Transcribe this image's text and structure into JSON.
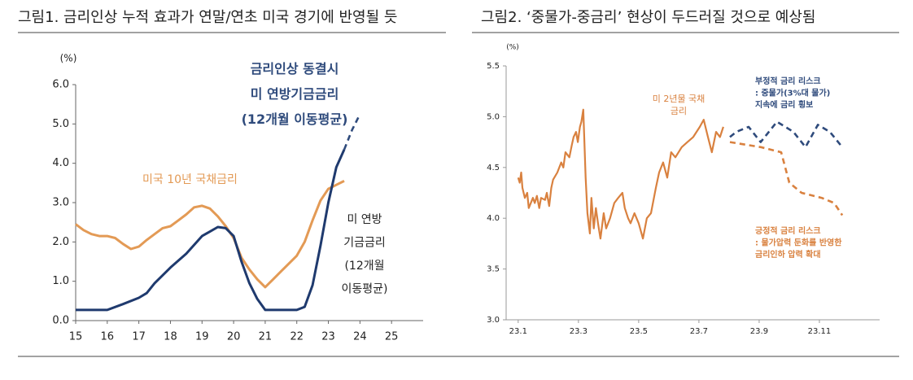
{
  "chart_data": [
    {
      "type": "line",
      "title": "그림1.   금리인상 누적 효과가 연말/연초 미국 경기에 반영될 듯",
      "y_label": "(%)",
      "xlim": [
        15,
        26
      ],
      "xticks": [
        15,
        16,
        17,
        18,
        19,
        20,
        21,
        22,
        23,
        24,
        25
      ],
      "ylim": [
        0,
        6
      ],
      "yticks": [
        {
          "value": 0,
          "label": "0.0"
        },
        {
          "value": 1,
          "label": "1.0"
        },
        {
          "value": 2,
          "label": "2.0"
        },
        {
          "value": 3,
          "label": "3.0"
        },
        {
          "value": 4,
          "label": "4.0"
        },
        {
          "value": 5,
          "label": "5.0"
        },
        {
          "value": 6,
          "label": "6.0"
        }
      ],
      "series": [
        {
          "name": "미국 10년 국채금리",
          "color": "#e39a55",
          "x": [
            15,
            15.25,
            15.5,
            15.75,
            16,
            16.25,
            16.5,
            16.75,
            17,
            17.25,
            17.5,
            17.75,
            18,
            18.25,
            18.5,
            18.75,
            19,
            19.25,
            19.5,
            19.75,
            20,
            20.25,
            20.5,
            20.75,
            21,
            21.25,
            21.5,
            21.75,
            22,
            22.25,
            22.5,
            22.75,
            23,
            23.25,
            23.5
          ],
          "values": [
            2.45,
            2.3,
            2.2,
            2.15,
            2.15,
            2.1,
            1.95,
            1.82,
            1.88,
            2.05,
            2.2,
            2.35,
            2.4,
            2.55,
            2.7,
            2.88,
            2.92,
            2.85,
            2.65,
            2.4,
            2.1,
            1.6,
            1.3,
            1.05,
            0.85,
            1.05,
            1.25,
            1.45,
            1.65,
            2.0,
            2.55,
            3.05,
            3.35,
            3.45,
            3.55
          ]
        },
        {
          "name": "미 연방\n기금금리\n(12개월\n이동평균)",
          "color": "#1f3a6e",
          "x": [
            15,
            15.5,
            16,
            16.5,
            17,
            17.25,
            17.5,
            18,
            18.5,
            19,
            19.5,
            19.75,
            20,
            20.25,
            20.5,
            20.75,
            21,
            21.5,
            22,
            22.25,
            22.5,
            22.75,
            23,
            23.25,
            23.5
          ],
          "values": [
            0.27,
            0.27,
            0.27,
            0.42,
            0.58,
            0.7,
            0.95,
            1.35,
            1.7,
            2.15,
            2.38,
            2.35,
            2.15,
            1.5,
            0.95,
            0.55,
            0.27,
            0.27,
            0.27,
            0.35,
            0.9,
            1.9,
            3.0,
            3.9,
            4.35
          ]
        },
        {
          "name": "금리인상 동결시\n미 연방기금금리\n(12개월 이동평균)",
          "color": "#2f4b7c",
          "dashed": true,
          "x": [
            23.5,
            23.75,
            24
          ],
          "values": [
            4.35,
            4.85,
            5.25
          ]
        }
      ]
    },
    {
      "type": "line",
      "title": "그림2.   ‘중물가-중금리’ 현상이 두드러질 것으로 예상됨",
      "y_label": "(%)",
      "xlim": [
        0.6,
        13
      ],
      "xticks": [
        {
          "value": 1,
          "label": "23.1"
        },
        {
          "value": 3,
          "label": "23.3"
        },
        {
          "value": 5,
          "label": "23.5"
        },
        {
          "value": 7,
          "label": "23.7"
        },
        {
          "value": 9,
          "label": "23.9"
        },
        {
          "value": 11,
          "label": "23.11"
        }
      ],
      "ylim": [
        3,
        5.5
      ],
      "yticks": [
        {
          "value": 3,
          "label": "3.0"
        },
        {
          "value": 3.5,
          "label": "3.5"
        },
        {
          "value": 4,
          "label": "4.0"
        },
        {
          "value": 4.5,
          "label": "4.5"
        },
        {
          "value": 5,
          "label": "5.0"
        },
        {
          "value": 5.5,
          "label": "5.5"
        }
      ],
      "series": [
        {
          "name": "미 2년물 국채\n금리",
          "color": "#d9813f",
          "x": [
            1,
            1.05,
            1.1,
            1.14,
            1.22,
            1.3,
            1.35,
            1.49,
            1.55,
            1.62,
            1.7,
            1.76,
            1.89,
            1.95,
            2.03,
            2.1,
            2.16,
            2.3,
            2.43,
            2.5,
            2.57,
            2.7,
            2.78,
            2.84,
            2.92,
            2.98,
            3.05,
            3.1,
            3.16,
            3.24,
            3.3,
            3.38,
            3.43,
            3.51,
            3.58,
            3.65,
            3.73,
            3.84,
            3.92,
            4.05,
            4.19,
            4.32,
            4.46,
            4.54,
            4.65,
            4.73,
            4.86,
            5.0,
            5.14,
            5.27,
            5.41,
            5.57,
            5.68,
            5.81,
            5.95,
            6.08,
            6.22,
            6.43,
            6.62,
            6.81,
            7.03,
            7.16,
            7.3,
            7.43,
            7.57,
            7.7,
            7.81
          ],
          "values": [
            4.4,
            4.35,
            4.45,
            4.3,
            4.2,
            4.25,
            4.1,
            4.2,
            4.15,
            4.22,
            4.1,
            4.2,
            4.18,
            4.25,
            4.12,
            4.3,
            4.38,
            4.45,
            4.55,
            4.5,
            4.65,
            4.6,
            4.72,
            4.8,
            4.85,
            4.75,
            4.9,
            4.95,
            5.07,
            4.4,
            4.05,
            3.85,
            4.2,
            3.9,
            4.1,
            3.95,
            3.8,
            4.05,
            3.9,
            4.0,
            4.15,
            4.2,
            4.25,
            4.1,
            4.0,
            3.95,
            4.05,
            3.95,
            3.8,
            4.0,
            4.05,
            4.3,
            4.45,
            4.55,
            4.4,
            4.65,
            4.6,
            4.7,
            4.75,
            4.8,
            4.9,
            4.97,
            4.8,
            4.65,
            4.85,
            4.8,
            4.9
          ]
        },
        {
          "name": "부정적 금리 리스크\n: 중물가(3%대 물가)\n지속에 금리 횡보",
          "color": "#2f4b7c",
          "dashed": true,
          "x": [
            8.03,
            8.24,
            8.65,
            9.05,
            9.59,
            10.14,
            10.54,
            10.95,
            11.35,
            11.76
          ],
          "values": [
            4.8,
            4.85,
            4.9,
            4.75,
            4.95,
            4.85,
            4.7,
            4.92,
            4.85,
            4.7
          ]
        },
        {
          "name": "긍정적 금리 리스크\n: 물가압력 둔화를 반영한\n금리인하 압력 확대",
          "color": "#d9813f",
          "dashed": true,
          "x": [
            8.03,
            9.05,
            9.73,
            10.0,
            10.41,
            11.08,
            11.49,
            11.76
          ],
          "values": [
            4.75,
            4.7,
            4.65,
            4.35,
            4.25,
            4.2,
            4.15,
            4.03
          ]
        }
      ]
    }
  ]
}
